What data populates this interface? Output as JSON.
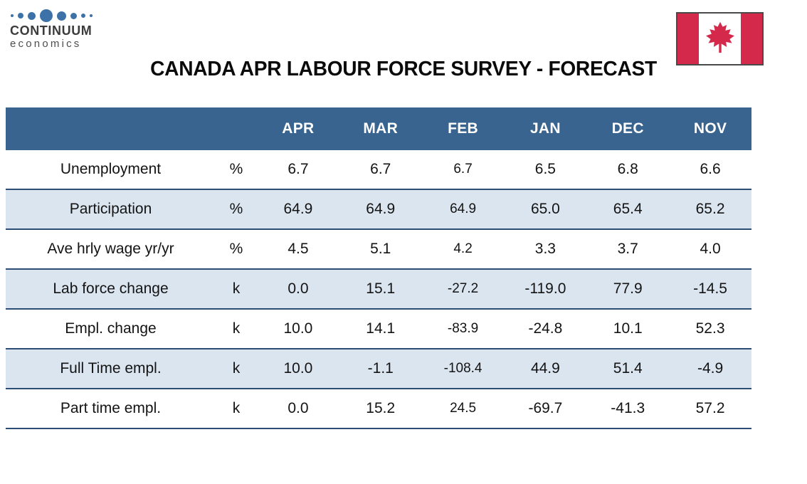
{
  "logo": {
    "line1": "CONTINUUM",
    "line2": "economics",
    "dot_sizes": [
      4,
      8,
      11,
      18,
      13,
      9,
      6,
      4
    ]
  },
  "header": {
    "title": "CANADA APR LABOUR FORCE SURVEY - FORECAST"
  },
  "flag": {
    "country": "Canada"
  },
  "theme": {
    "header_bg": "#38648f",
    "header_text": "#ffffff",
    "stripe_bg": "#dbe5f0",
    "row_border": "#2e4d74",
    "cell_text": "#141414",
    "flag_red": "#d5294b",
    "logo_dot": "#3c72a8"
  },
  "chart_data": {
    "type": "table",
    "title": "CANADA APR LABOUR FORCE SURVEY - FORECAST",
    "columns": [
      "APR",
      "MAR",
      "FEB",
      "JAN",
      "DEC",
      "NOV"
    ],
    "rows": [
      {
        "label": "Unemployment",
        "unit": "%",
        "values": [
          "6.7",
          "6.7",
          "6.7",
          "6.5",
          "6.8",
          "6.6"
        ]
      },
      {
        "label": "Participation",
        "unit": "%",
        "values": [
          "64.9",
          "64.9",
          "64.9",
          "65.0",
          "65.4",
          "65.2"
        ]
      },
      {
        "label": "Ave hrly wage yr/yr",
        "unit": "%",
        "values": [
          "4.5",
          "5.1",
          "4.2",
          "3.3",
          "3.7",
          "4.0"
        ]
      },
      {
        "label": "Lab force change",
        "unit": "k",
        "values": [
          "0.0",
          "15.1",
          "-27.2",
          "-119.0",
          "77.9",
          "-14.5"
        ]
      },
      {
        "label": "Empl. change",
        "unit": "k",
        "values": [
          "10.0",
          "14.1",
          "-83.9",
          "-24.8",
          "10.1",
          "52.3"
        ]
      },
      {
        "label": "Full Time empl.",
        "unit": "k",
        "values": [
          "10.0",
          "-1.1",
          "-108.4",
          "44.9",
          "51.4",
          "-4.9"
        ]
      },
      {
        "label": "Part time empl.",
        "unit": "k",
        "values": [
          "0.0",
          "15.2",
          "24.5",
          "-69.7",
          "-41.3",
          "57.2"
        ]
      }
    ]
  }
}
